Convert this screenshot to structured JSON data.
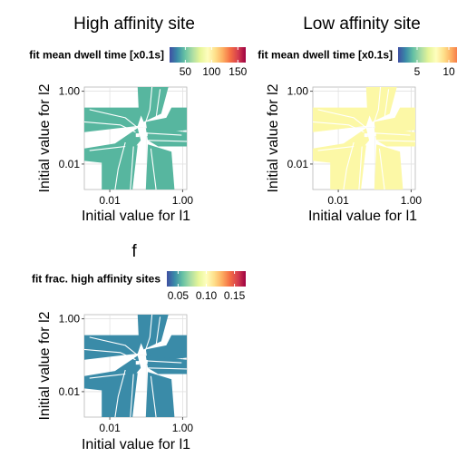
{
  "chart_data": [
    {
      "type": "heatmap",
      "title": "High affinity site",
      "xlabel": "Initial value for l1",
      "ylabel": "Initial value for l2",
      "x_scale": "log10",
      "y_scale": "log10",
      "xlim": [
        0.002,
        1.3
      ],
      "ylim": [
        0.002,
        1.3
      ],
      "x_ticks": [
        0.01,
        1.0
      ],
      "x_tick_labels": [
        "0.01",
        "1.00"
      ],
      "y_ticks": [
        0.01,
        1.0
      ],
      "y_tick_labels": [
        "0.01",
        "1.00"
      ],
      "grid": true,
      "legend": {
        "title": "fit mean dwell time [x0.1s]",
        "position": "top",
        "colormap": "Spectral (reversed)",
        "range": [
          20,
          165
        ],
        "ticks": [
          50,
          100,
          150
        ],
        "tick_labels": [
          "50",
          "100",
          "150"
        ]
      },
      "fill_value": 24,
      "fill_color": "#57b69f"
    },
    {
      "type": "heatmap",
      "title": "Low affinity site",
      "xlabel": "Initial value for l1",
      "ylabel": "Initial value for l2",
      "x_scale": "log10",
      "y_scale": "log10",
      "xlim": [
        0.002,
        1.3
      ],
      "ylim": [
        0.002,
        1.3
      ],
      "x_ticks": [
        0.01,
        1.0
      ],
      "x_tick_labels": [
        "0.01",
        "1.00"
      ],
      "y_ticks": [
        0.01,
        1.0
      ],
      "y_tick_labels": [
        "0.01",
        "1.00"
      ],
      "grid": true,
      "legend": {
        "title": "fit mean dwell time [x0.1s]",
        "position": "top",
        "colormap": "Spectral (reversed)",
        "range": [
          2,
          14
        ],
        "ticks": [
          5,
          10
        ],
        "tick_labels": [
          "5",
          "10"
        ]
      },
      "fill_value": 8,
      "fill_color": "#fcf8a6"
    },
    {
      "type": "heatmap",
      "title": "f",
      "xlabel": "Initial value for l1",
      "ylabel": "Initial value for l2",
      "x_scale": "log10",
      "y_scale": "log10",
      "xlim": [
        0.002,
        1.3
      ],
      "ylim": [
        0.002,
        1.3
      ],
      "x_ticks": [
        0.01,
        1.0
      ],
      "x_tick_labels": [
        "0.01",
        "1.00"
      ],
      "y_ticks": [
        0.01,
        1.0
      ],
      "y_tick_labels": [
        "0.01",
        "1.00"
      ],
      "grid": true,
      "legend": {
        "title": "fit frac. high affinity sites",
        "position": "top",
        "colormap": "Spectral (reversed)",
        "range": [
          0.03,
          0.17
        ],
        "ticks": [
          0.05,
          0.1,
          0.15
        ],
        "tick_labels": [
          "0.05",
          "0.10",
          "0.15"
        ]
      },
      "fill_value": 0.045,
      "fill_color": "#3a8ba8"
    }
  ],
  "spectral_colors": [
    "#3f4ea2",
    "#3a8ba8",
    "#66c1a4",
    "#abdda4",
    "#e6f598",
    "#fefebe",
    "#fee08b",
    "#fdae61",
    "#f46d43",
    "#d53e4f",
    "#9e0142"
  ]
}
